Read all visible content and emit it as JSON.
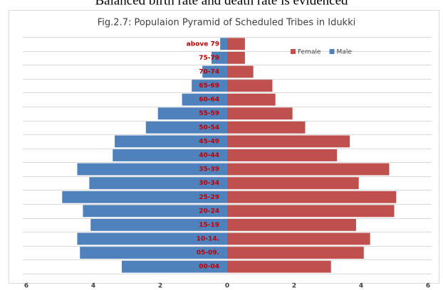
{
  "document_text": "Balanced birth rate and death rate is evidenced",
  "chart_data": {
    "type": "pyramid",
    "title": "Fig.2.7: Populaion Pyramid of Scheduled Tribes in Idukki",
    "categories": [
      "00-04",
      "05-09.",
      "10-14.",
      "15-19",
      "20-24",
      "25-29",
      "30-34",
      "35-39",
      "40-44",
      "45-49",
      "50-54",
      "55-59",
      "60-64",
      "65-69",
      "70-74",
      "75-79",
      "above 79"
    ],
    "series": [
      {
        "name": "Female",
        "color": "#c0504d",
        "values": [
          3.1,
          4.08,
          4.27,
          3.85,
          4.99,
          5.05,
          3.93,
          4.84,
          3.28,
          3.66,
          2.33,
          1.95,
          1.44,
          1.35,
          0.78,
          0.53,
          0.53
        ]
      },
      {
        "name": "Male",
        "color": "#4f81bd",
        "values": [
          -3.15,
          -4.4,
          -4.48,
          -4.08,
          -4.31,
          -4.93,
          -4.12,
          -4.48,
          -3.42,
          -3.36,
          -2.43,
          -2.07,
          -1.35,
          -1.06,
          -0.74,
          -0.47,
          -0.21
        ]
      }
    ],
    "xlim": [
      -6,
      6
    ],
    "xticks": [
      {
        "value": -6,
        "label": "6"
      },
      {
        "value": -4,
        "label": "4"
      },
      {
        "value": -2,
        "label": "2"
      },
      0,
      2,
      4,
      6
    ],
    "grid": true,
    "legend": "top-right",
    "category_label_color": "#c00000"
  }
}
